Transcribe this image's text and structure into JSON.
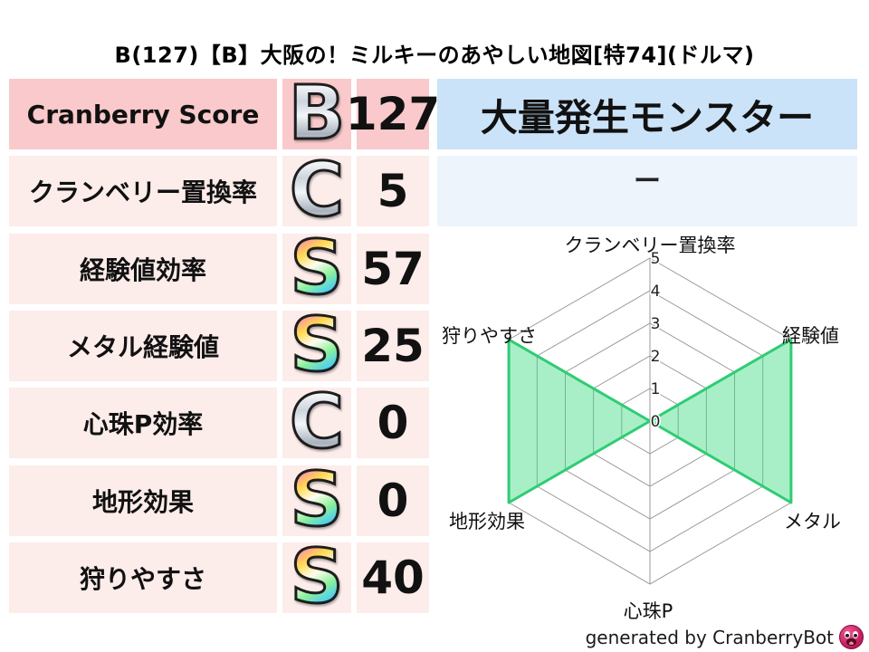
{
  "title": "B(127)【B】大阪の！ミルキーのあやしい地図[特74](ドルマ)",
  "stats_table": {
    "rows": [
      {
        "label": "Cranberry Score",
        "grade": "B",
        "grade_style": "silver",
        "value": "127",
        "highlight": true
      },
      {
        "label": "クランベリー置換率",
        "grade": "C",
        "grade_style": "silver",
        "value": "5",
        "highlight": false
      },
      {
        "label": "経験値効率",
        "grade": "S",
        "grade_style": "rainbow",
        "value": "57",
        "highlight": false
      },
      {
        "label": "メタル経験値",
        "grade": "S",
        "grade_style": "rainbow",
        "value": "25",
        "highlight": false
      },
      {
        "label": "心珠P効率",
        "grade": "C",
        "grade_style": "silver",
        "value": "0",
        "highlight": false
      },
      {
        "label": "地形効果",
        "grade": "S",
        "grade_style": "rainbow",
        "value": "0",
        "highlight": false
      },
      {
        "label": "狩りやすさ",
        "grade": "S",
        "grade_style": "rainbow",
        "value": "40",
        "highlight": false
      }
    ]
  },
  "monster_panel": {
    "header": "大量発生モンスター",
    "value": "ー"
  },
  "chart_data": {
    "type": "radar",
    "axes": [
      "クランベリー置換率",
      "経験値",
      "メタル",
      "心珠P",
      "地形効果",
      "狩りやすさ"
    ],
    "values": [
      0,
      5,
      5,
      0,
      5,
      5
    ],
    "max": 5,
    "ticks": [
      0,
      1,
      2,
      3,
      4,
      5
    ],
    "grid": true,
    "fill_color": "#3ddc84",
    "fill_opacity": 0.45,
    "stroke_color": "#2fcc74",
    "grid_color": "#9a9a9a",
    "tick_color": "#222222"
  },
  "footer": {
    "credit": "generated by CranberryBot",
    "icon": "cranberry-face-icon"
  },
  "colors": {
    "row_highlight": "#fac9cb",
    "row_normal": "#fcecea",
    "panel_header_bg": "#cbe3f8",
    "panel_value_bg": "#edf4fc"
  }
}
